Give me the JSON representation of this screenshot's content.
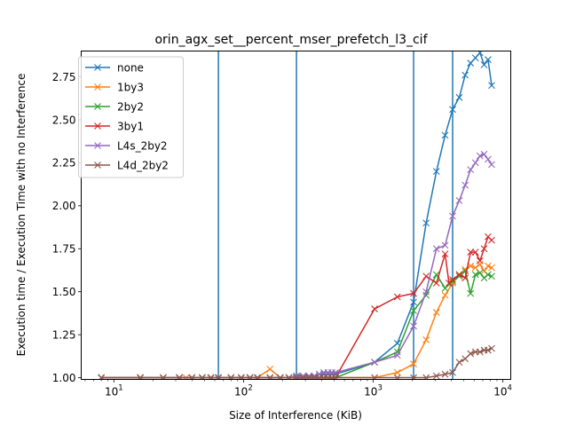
{
  "chart_data": {
    "type": "line",
    "title": "orin_agx_set__percent_mser_prefetch_l3_cif",
    "xlabel": "Size of Interference (KiB)",
    "ylabel": "Execution time / Execution Time with no Interference",
    "xscale": "log",
    "xlim": [
      5.6,
      11500
    ],
    "ylim": [
      0.99,
      2.9
    ],
    "xticks": [
      {
        "value": 10,
        "base": "10",
        "exp": "1"
      },
      {
        "value": 100,
        "base": "10",
        "exp": "2"
      },
      {
        "value": 1000,
        "base": "10",
        "exp": "3"
      },
      {
        "value": 10000,
        "base": "10",
        "exp": "4"
      }
    ],
    "yticks": [
      {
        "value": 1.0,
        "label": "1.00"
      },
      {
        "value": 1.25,
        "label": "1.25"
      },
      {
        "value": 1.5,
        "label": "1.50"
      },
      {
        "value": 1.75,
        "label": "1.75"
      },
      {
        "value": 2.0,
        "label": "2.00"
      },
      {
        "value": 2.25,
        "label": "2.25"
      },
      {
        "value": 2.5,
        "label": "2.50"
      },
      {
        "value": 2.75,
        "label": "2.75"
      }
    ],
    "vlines": [
      64,
      256,
      2048,
      4096
    ],
    "vline_color": "#1f77b4",
    "legend_position": "upper-left",
    "series": [
      {
        "name": "none",
        "color": "#1f77b4",
        "x": [
          8,
          16,
          24,
          32,
          40,
          48,
          56,
          64,
          80,
          96,
          112,
          128,
          160,
          192,
          224,
          256,
          288,
          320,
          352,
          384,
          416,
          448,
          480,
          512,
          1024,
          1536,
          2048,
          2560,
          3072,
          3584,
          4096,
          4608,
          5120,
          5632,
          6144,
          6656,
          7168,
          7680,
          8192
        ],
        "y": [
          1.0,
          1.0,
          1.0,
          1.0,
          1.0,
          1.0,
          1.0,
          1.0,
          1.0,
          1.0,
          1.0,
          1.0,
          1.0,
          1.0,
          1.0,
          1.01,
          1.01,
          1.01,
          1.01,
          1.02,
          1.02,
          1.02,
          1.02,
          1.02,
          1.09,
          1.2,
          1.44,
          1.9,
          2.2,
          2.41,
          2.56,
          2.63,
          2.76,
          2.83,
          2.86,
          2.89,
          2.82,
          2.85,
          2.7
        ]
      },
      {
        "name": "1by3",
        "color": "#ff7f0e",
        "x": [
          8,
          16,
          24,
          32,
          36,
          40,
          48,
          56,
          64,
          80,
          96,
          112,
          128,
          160,
          192,
          224,
          256,
          288,
          320,
          352,
          384,
          416,
          448,
          480,
          512,
          1024,
          1536,
          2048,
          2560,
          3072,
          3584,
          4096,
          4608,
          5120,
          5632,
          6144,
          6656,
          7168,
          7680,
          8192
        ],
        "y": [
          1.0,
          1.0,
          1.0,
          1.0,
          1.0,
          1.0,
          1.0,
          1.0,
          1.0,
          1.0,
          1.0,
          1.0,
          1.0,
          1.05,
          1.0,
          1.0,
          1.0,
          1.0,
          1.0,
          1.0,
          1.0,
          1.0,
          1.0,
          1.0,
          1.0,
          1.0,
          1.03,
          1.08,
          1.22,
          1.38,
          1.48,
          1.55,
          1.6,
          1.63,
          1.65,
          1.64,
          1.66,
          1.62,
          1.65,
          1.64
        ]
      },
      {
        "name": "2by2",
        "color": "#2ca02c",
        "x": [
          8,
          16,
          24,
          32,
          40,
          48,
          56,
          64,
          80,
          96,
          112,
          128,
          160,
          192,
          224,
          256,
          288,
          320,
          352,
          384,
          416,
          448,
          480,
          512,
          1024,
          1536,
          2048,
          2560,
          3072,
          3584,
          4096,
          4608,
          5120,
          5632,
          6144,
          6656,
          7168,
          7680,
          8192
        ],
        "y": [
          1.0,
          1.0,
          1.0,
          1.0,
          1.0,
          1.0,
          1.0,
          1.0,
          1.0,
          1.0,
          1.0,
          1.0,
          1.0,
          1.0,
          1.0,
          1.0,
          1.0,
          1.0,
          1.0,
          1.0,
          1.0,
          1.0,
          1.0,
          1.0,
          1.09,
          1.15,
          1.39,
          1.48,
          1.6,
          1.52,
          1.56,
          1.59,
          1.62,
          1.49,
          1.6,
          1.61,
          1.58,
          1.6,
          1.59
        ]
      },
      {
        "name": "3by1",
        "color": "#d62728",
        "x": [
          8,
          16,
          24,
          32,
          40,
          48,
          56,
          64,
          80,
          96,
          112,
          128,
          160,
          192,
          224,
          256,
          288,
          320,
          352,
          384,
          416,
          448,
          480,
          512,
          1024,
          1536,
          2048,
          2560,
          3072,
          3584,
          3840,
          4096,
          4608,
          5120,
          5632,
          6144,
          6656,
          7168,
          7680,
          8192
        ],
        "y": [
          1.0,
          1.0,
          1.0,
          1.0,
          1.0,
          1.0,
          1.0,
          1.0,
          1.0,
          1.0,
          1.0,
          1.0,
          1.0,
          1.0,
          1.0,
          1.0,
          1.0,
          1.0,
          1.0,
          1.0,
          1.0,
          1.0,
          1.0,
          1.0,
          1.4,
          1.47,
          1.49,
          1.59,
          1.55,
          1.72,
          1.55,
          1.57,
          1.6,
          1.58,
          1.73,
          1.73,
          1.68,
          1.75,
          1.82,
          1.8
        ]
      },
      {
        "name": "L4s_2by2",
        "color": "#9467bd",
        "x": [
          8,
          16,
          24,
          32,
          40,
          48,
          56,
          64,
          80,
          96,
          112,
          128,
          160,
          192,
          224,
          256,
          288,
          320,
          352,
          384,
          416,
          448,
          480,
          512,
          1024,
          1536,
          2048,
          2560,
          3072,
          3584,
          4096,
          4608,
          5120,
          5632,
          6144,
          6656,
          7168,
          7680,
          8192
        ],
        "y": [
          1.0,
          1.0,
          1.0,
          1.0,
          1.0,
          1.0,
          1.0,
          1.0,
          1.0,
          1.0,
          1.0,
          1.0,
          1.0,
          1.0,
          1.0,
          1.01,
          1.01,
          1.01,
          1.01,
          1.02,
          1.03,
          1.03,
          1.03,
          1.03,
          1.09,
          1.13,
          1.3,
          1.5,
          1.75,
          1.77,
          1.94,
          2.03,
          2.12,
          2.21,
          2.25,
          2.29,
          2.3,
          2.27,
          2.24
        ]
      },
      {
        "name": "L4d_2by2",
        "color": "#8c564b",
        "x": [
          8,
          16,
          24,
          32,
          40,
          48,
          56,
          64,
          80,
          96,
          112,
          128,
          160,
          192,
          224,
          256,
          288,
          320,
          352,
          384,
          416,
          448,
          480,
          512,
          1024,
          1536,
          2048,
          2560,
          3072,
          3584,
          4096,
          4608,
          5120,
          5632,
          6144,
          6656,
          7168,
          7680,
          8192
        ],
        "y": [
          1.0,
          1.0,
          1.0,
          1.0,
          1.0,
          1.0,
          1.0,
          1.0,
          1.0,
          1.0,
          1.0,
          1.0,
          1.0,
          1.0,
          1.0,
          1.0,
          1.0,
          1.0,
          1.0,
          1.0,
          1.0,
          1.0,
          1.0,
          1.0,
          1.0,
          1.0,
          1.0,
          1.0,
          1.01,
          1.02,
          1.03,
          1.09,
          1.11,
          1.14,
          1.15,
          1.15,
          1.16,
          1.16,
          1.17
        ]
      }
    ]
  }
}
